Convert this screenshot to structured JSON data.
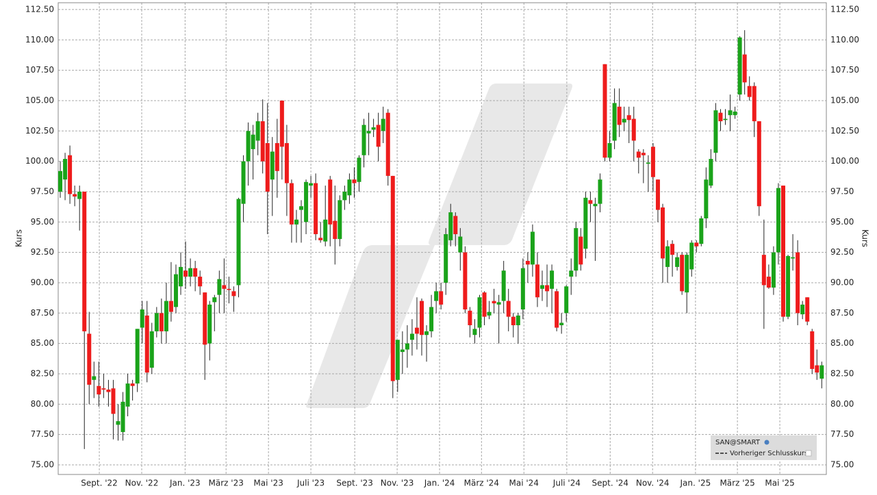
{
  "chart_data": {
    "type": "candlestick",
    "y_label": "Kurs",
    "y2_label": "Kurs",
    "xlim": [
      -0.43,
      158.95
    ],
    "xticks": [
      {
        "value": 8.1,
        "label": "Sept. '22"
      },
      {
        "value": 16.9,
        "label": "Nov. '22"
      },
      {
        "value": 25.9,
        "label": "Jan. '23"
      },
      {
        "value": 34.4,
        "label": "März '23"
      },
      {
        "value": 43.2,
        "label": "Mai '23"
      },
      {
        "value": 52,
        "label": "Juli '23"
      },
      {
        "value": 61.1,
        "label": "Sept. '23"
      },
      {
        "value": 69.9,
        "label": "Nov. '23"
      },
      {
        "value": 78.7,
        "label": "Jan. '24"
      },
      {
        "value": 87.4,
        "label": "März '24"
      },
      {
        "value": 96.2,
        "label": "Mai '24"
      },
      {
        "value": 105.1,
        "label": "Juli '24"
      },
      {
        "value": 114.1,
        "label": "Sept. '24"
      },
      {
        "value": 122.9,
        "label": "Nov. '24"
      },
      {
        "value": 131.8,
        "label": "Jan. '25"
      },
      {
        "value": 140.5,
        "label": "März '25"
      },
      {
        "value": 149.3,
        "label": "Mai '25"
      }
    ],
    "ylim": [
      74.21,
      113.06
    ],
    "yticks": [
      {
        "value": 75,
        "label": "75.00"
      },
      {
        "value": 77.5,
        "label": "77.50"
      },
      {
        "value": 80,
        "label": "80.00"
      },
      {
        "value": 82.5,
        "label": "82.50"
      },
      {
        "value": 85,
        "label": "85.00"
      },
      {
        "value": 87.5,
        "label": "87.50"
      },
      {
        "value": 90,
        "label": "90.00"
      },
      {
        "value": 92.5,
        "label": "92.50"
      },
      {
        "value": 95,
        "label": "95.00"
      },
      {
        "value": 97.5,
        "label": "97.50"
      },
      {
        "value": 100,
        "label": "100.00"
      },
      {
        "value": 102.5,
        "label": "102.50"
      },
      {
        "value": 105,
        "label": "105.00"
      },
      {
        "value": 107.5,
        "label": "107.50"
      },
      {
        "value": 110,
        "label": "110.00"
      },
      {
        "value": 112.5,
        "label": "112.50"
      }
    ],
    "grid": true,
    "up_color": "#1aa31a",
    "down_color": "#ee1c1c",
    "legend": "bottom-right",
    "previous_close_label": "Vorheriger Schlusskurs",
    "series": [
      {
        "name": "SAN@SMART",
        "open": [
          97.5,
          98.5,
          100.5,
          97.3,
          96.9,
          97.5,
          85.8,
          82,
          81.5,
          81.3,
          81.2,
          81.3,
          78.3,
          77.7,
          79.8,
          81.7,
          81.7,
          86.3,
          87.3,
          83,
          86,
          87.5,
          86,
          88.5,
          88,
          89.7,
          91,
          90.5,
          91.2,
          90.5,
          89.2,
          85,
          88.4,
          89,
          89.8,
          89.5,
          89.3,
          89.8,
          96.5,
          100,
          101,
          101.7,
          103.3,
          101.5,
          98.5,
          101.5,
          105,
          101.5,
          98.2,
          94.8,
          96,
          95,
          98,
          98.2,
          93.7,
          93.4,
          98.5,
          95.1,
          93.6,
          96.8,
          97.2,
          98.5,
          98.3,
          100.5,
          102.3,
          102.6,
          103,
          102.5,
          104,
          98.8,
          82,
          84.3,
          84.5,
          85.3,
          86.3,
          88.5,
          85.7,
          86,
          88.5,
          89.3,
          90,
          93.5,
          95.5,
          92.5,
          92.5,
          87.7,
          85.7,
          86.3,
          89.2,
          87.3,
          88.5,
          88.2,
          88.5,
          88.5,
          87.2,
          86.5,
          87.8,
          91.8,
          91.5,
          91.5,
          89.5,
          89.8,
          89.5,
          89.3,
          86.5,
          87.5,
          90.5,
          91,
          93.8,
          92.8,
          96.8,
          96.3,
          96.5,
          108,
          100.3,
          101.7,
          104.5,
          103.2,
          103.8,
          103.5,
          100.8,
          100.7,
          99.8,
          101.2,
          98.5,
          96.2,
          91.3,
          93.2,
          91.3,
          92.3,
          89.2,
          91.1,
          93.3,
          93.2,
          95.3,
          98,
          100.7,
          104,
          103.4,
          103.8,
          103.8,
          105.5,
          108.8,
          106.2,
          106.2,
          103.3,
          92.3,
          90.5,
          89.6,
          92.5,
          98,
          87.2,
          92,
          92.5,
          87.4,
          88.8,
          86,
          83.2,
          82.1
        ],
        "high": [
          100,
          100.7,
          101.3,
          98,
          98,
          97.5,
          87.6,
          83.5,
          83.5,
          82.5,
          82,
          82,
          80,
          81,
          82.5,
          82,
          86.2,
          88.5,
          88.5,
          86.7,
          88,
          88.7,
          90,
          91.7,
          91.5,
          92.5,
          93.4,
          92,
          91.8,
          91,
          89.2,
          88.5,
          89,
          91,
          92,
          90.5,
          89.7,
          97,
          100.5,
          103.2,
          103,
          104,
          105.1,
          104.8,
          102,
          103.5,
          105,
          103,
          98.5,
          96,
          96.8,
          98.5,
          98.8,
          99,
          95,
          98,
          98.8,
          98,
          97.2,
          98,
          99,
          99.5,
          100.5,
          103.5,
          104,
          103.5,
          104,
          104.5,
          104.3,
          98.8,
          85.3,
          86,
          86.5,
          87,
          88.8,
          88.7,
          86.5,
          89,
          90,
          90,
          94.5,
          96.5,
          95.8,
          94.5,
          93,
          88,
          87,
          89,
          89.3,
          88.5,
          89.5,
          89,
          91.8,
          89.5,
          87.5,
          87.5,
          92,
          92.5,
          94.8,
          92.5,
          91,
          91.5,
          91.5,
          89.5,
          87.5,
          89.8,
          92,
          95,
          94.5,
          97.5,
          97.5,
          97,
          99,
          108,
          102.5,
          106,
          106,
          104.5,
          104.5,
          104.5,
          101,
          101,
          100.5,
          101.5,
          98.5,
          96.5,
          93.5,
          93.5,
          92.5,
          92.5,
          92.5,
          93.5,
          93.5,
          95.5,
          99.5,
          101,
          104.8,
          104.3,
          104.3,
          105.5,
          104.5,
          110.3,
          110.8,
          107,
          106.5,
          103.3,
          95.2,
          91.5,
          93,
          98.2,
          98,
          92.3,
          94,
          93.5,
          88.5,
          88.8,
          86.2,
          84.5,
          83.5
        ],
        "low": [
          97,
          96.8,
          96.5,
          96.3,
          94.3,
          76.3,
          80,
          80.5,
          79.8,
          80.5,
          79.8,
          77.1,
          77,
          77,
          79,
          80.3,
          81,
          85,
          81.8,
          82.5,
          85.5,
          85,
          85,
          86.8,
          87.5,
          89,
          89.5,
          89.7,
          89.3,
          89,
          82,
          83.6,
          86,
          87.5,
          87.5,
          88.3,
          87.6,
          88.8,
          95,
          98,
          98.5,
          100.5,
          99,
          94,
          95.5,
          97,
          98.5,
          95.5,
          93.3,
          93.3,
          93.3,
          94,
          97,
          93.5,
          93.3,
          93,
          93,
          91.5,
          93,
          96,
          96.5,
          97,
          97.5,
          99.5,
          100.5,
          102,
          100,
          101.5,
          98,
          80.5,
          81,
          82.5,
          83,
          84,
          84.5,
          84,
          83.5,
          85.5,
          87.5,
          87.8,
          89,
          93,
          93,
          91,
          87.5,
          85.5,
          85,
          85.5,
          86.5,
          87,
          87.5,
          85,
          87.5,
          86,
          85.5,
          85,
          87,
          90,
          90.5,
          88,
          88.5,
          88,
          87.5,
          86,
          85.8,
          86.8,
          89,
          90.5,
          91,
          92,
          95,
          91.8,
          95.8,
          100,
          100,
          101,
          102,
          102.5,
          101.5,
          100,
          99,
          98.2,
          97.5,
          97.5,
          95,
          90,
          90,
          90.5,
          91,
          89,
          87.5,
          90.5,
          92.5,
          93,
          94.5,
          97.8,
          100,
          102.5,
          103,
          102.5,
          103.5,
          105,
          105.5,
          105,
          102,
          95.5,
          86.2,
          89.5,
          89,
          91.5,
          86.8,
          87,
          91,
          86.5,
          87,
          86.5,
          82.5,
          82,
          81.3
        ],
        "close": [
          99.2,
          100.2,
          97.3,
          97.1,
          97.5,
          86,
          81.6,
          82.3,
          80.8,
          81.2,
          81,
          79.2,
          78.6,
          80.2,
          81.7,
          81.5,
          86.2,
          87.8,
          82.6,
          86,
          87.5,
          86,
          88.5,
          87.6,
          90.7,
          91.3,
          90.5,
          91.2,
          90.5,
          89.7,
          84.9,
          88.2,
          88.8,
          90.3,
          89.5,
          89.4,
          88.9,
          96.9,
          100,
          102.5,
          102.2,
          103.3,
          100,
          97.5,
          100.8,
          99.2,
          101.2,
          98.2,
          94.8,
          95.2,
          96.3,
          98.3,
          98.2,
          94,
          93.5,
          95.2,
          94.8,
          93.6,
          96.8,
          97.5,
          98.5,
          98.2,
          100.3,
          103,
          102.5,
          102.8,
          101.2,
          103.5,
          98.8,
          81.9,
          85.3,
          84.5,
          85,
          85.8,
          85.8,
          85.7,
          86,
          88,
          89.3,
          88.2,
          94,
          95.8,
          94,
          93.8,
          87.8,
          86.5,
          86.2,
          88.8,
          87.2,
          87.6,
          88.3,
          88.4,
          91,
          87.2,
          86.5,
          87.3,
          91.2,
          91.5,
          94.2,
          88.8,
          89.8,
          89.3,
          91,
          86.3,
          86.7,
          89.7,
          91,
          94.5,
          91.5,
          97,
          96.5,
          96.5,
          98.5,
          100.3,
          101.5,
          104.8,
          103,
          103.5,
          103.4,
          101.7,
          100.3,
          100.5,
          99.9,
          98.7,
          96,
          92,
          93,
          92.3,
          92.1,
          89.3,
          92.3,
          93.3,
          93,
          95.3,
          98.5,
          100.2,
          104.2,
          103.3,
          103.5,
          104.2,
          104.1,
          110.2,
          106.5,
          105.3,
          103.3,
          96.3,
          89.8,
          89.6,
          92.5,
          97.8,
          87.2,
          92.2,
          92.1,
          87.5,
          88.2,
          86.8,
          82.9,
          82.6,
          83.2
        ]
      }
    ]
  }
}
